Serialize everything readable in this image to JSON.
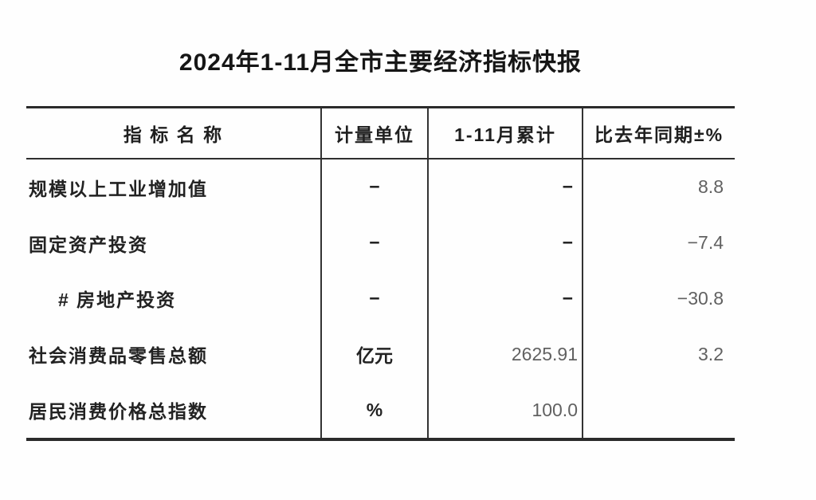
{
  "title": "2024年1-11月全市主要经济指标快报",
  "table": {
    "headers": {
      "name": "指 标 名 称",
      "unit": "计量单位",
      "cumulative": "1-11月累计",
      "yoy": "比去年同期±%"
    },
    "rows": [
      {
        "name": "规模以上工业增加值",
        "unit": "−",
        "cumulative": "−",
        "yoy": "8.8",
        "indent": false
      },
      {
        "name": "固定资产投资",
        "unit": "−",
        "cumulative": "−",
        "yoy": "−7.4",
        "indent": false
      },
      {
        "name": "# 房地产投资",
        "unit": "−",
        "cumulative": "−",
        "yoy": "−30.8",
        "indent": true
      },
      {
        "name": "社会消费品零售总额",
        "unit": "亿元",
        "cumulative": "2625.91",
        "yoy": "3.2",
        "indent": false
      },
      {
        "name": "居民消费价格总指数",
        "unit": "%",
        "cumulative": "100.0",
        "yoy": "",
        "indent": false
      }
    ]
  },
  "colors": {
    "background": "#fefefe",
    "rule_line": "#2b2b2b",
    "label_text": "#1f1f1f",
    "number_text": "#616161"
  }
}
